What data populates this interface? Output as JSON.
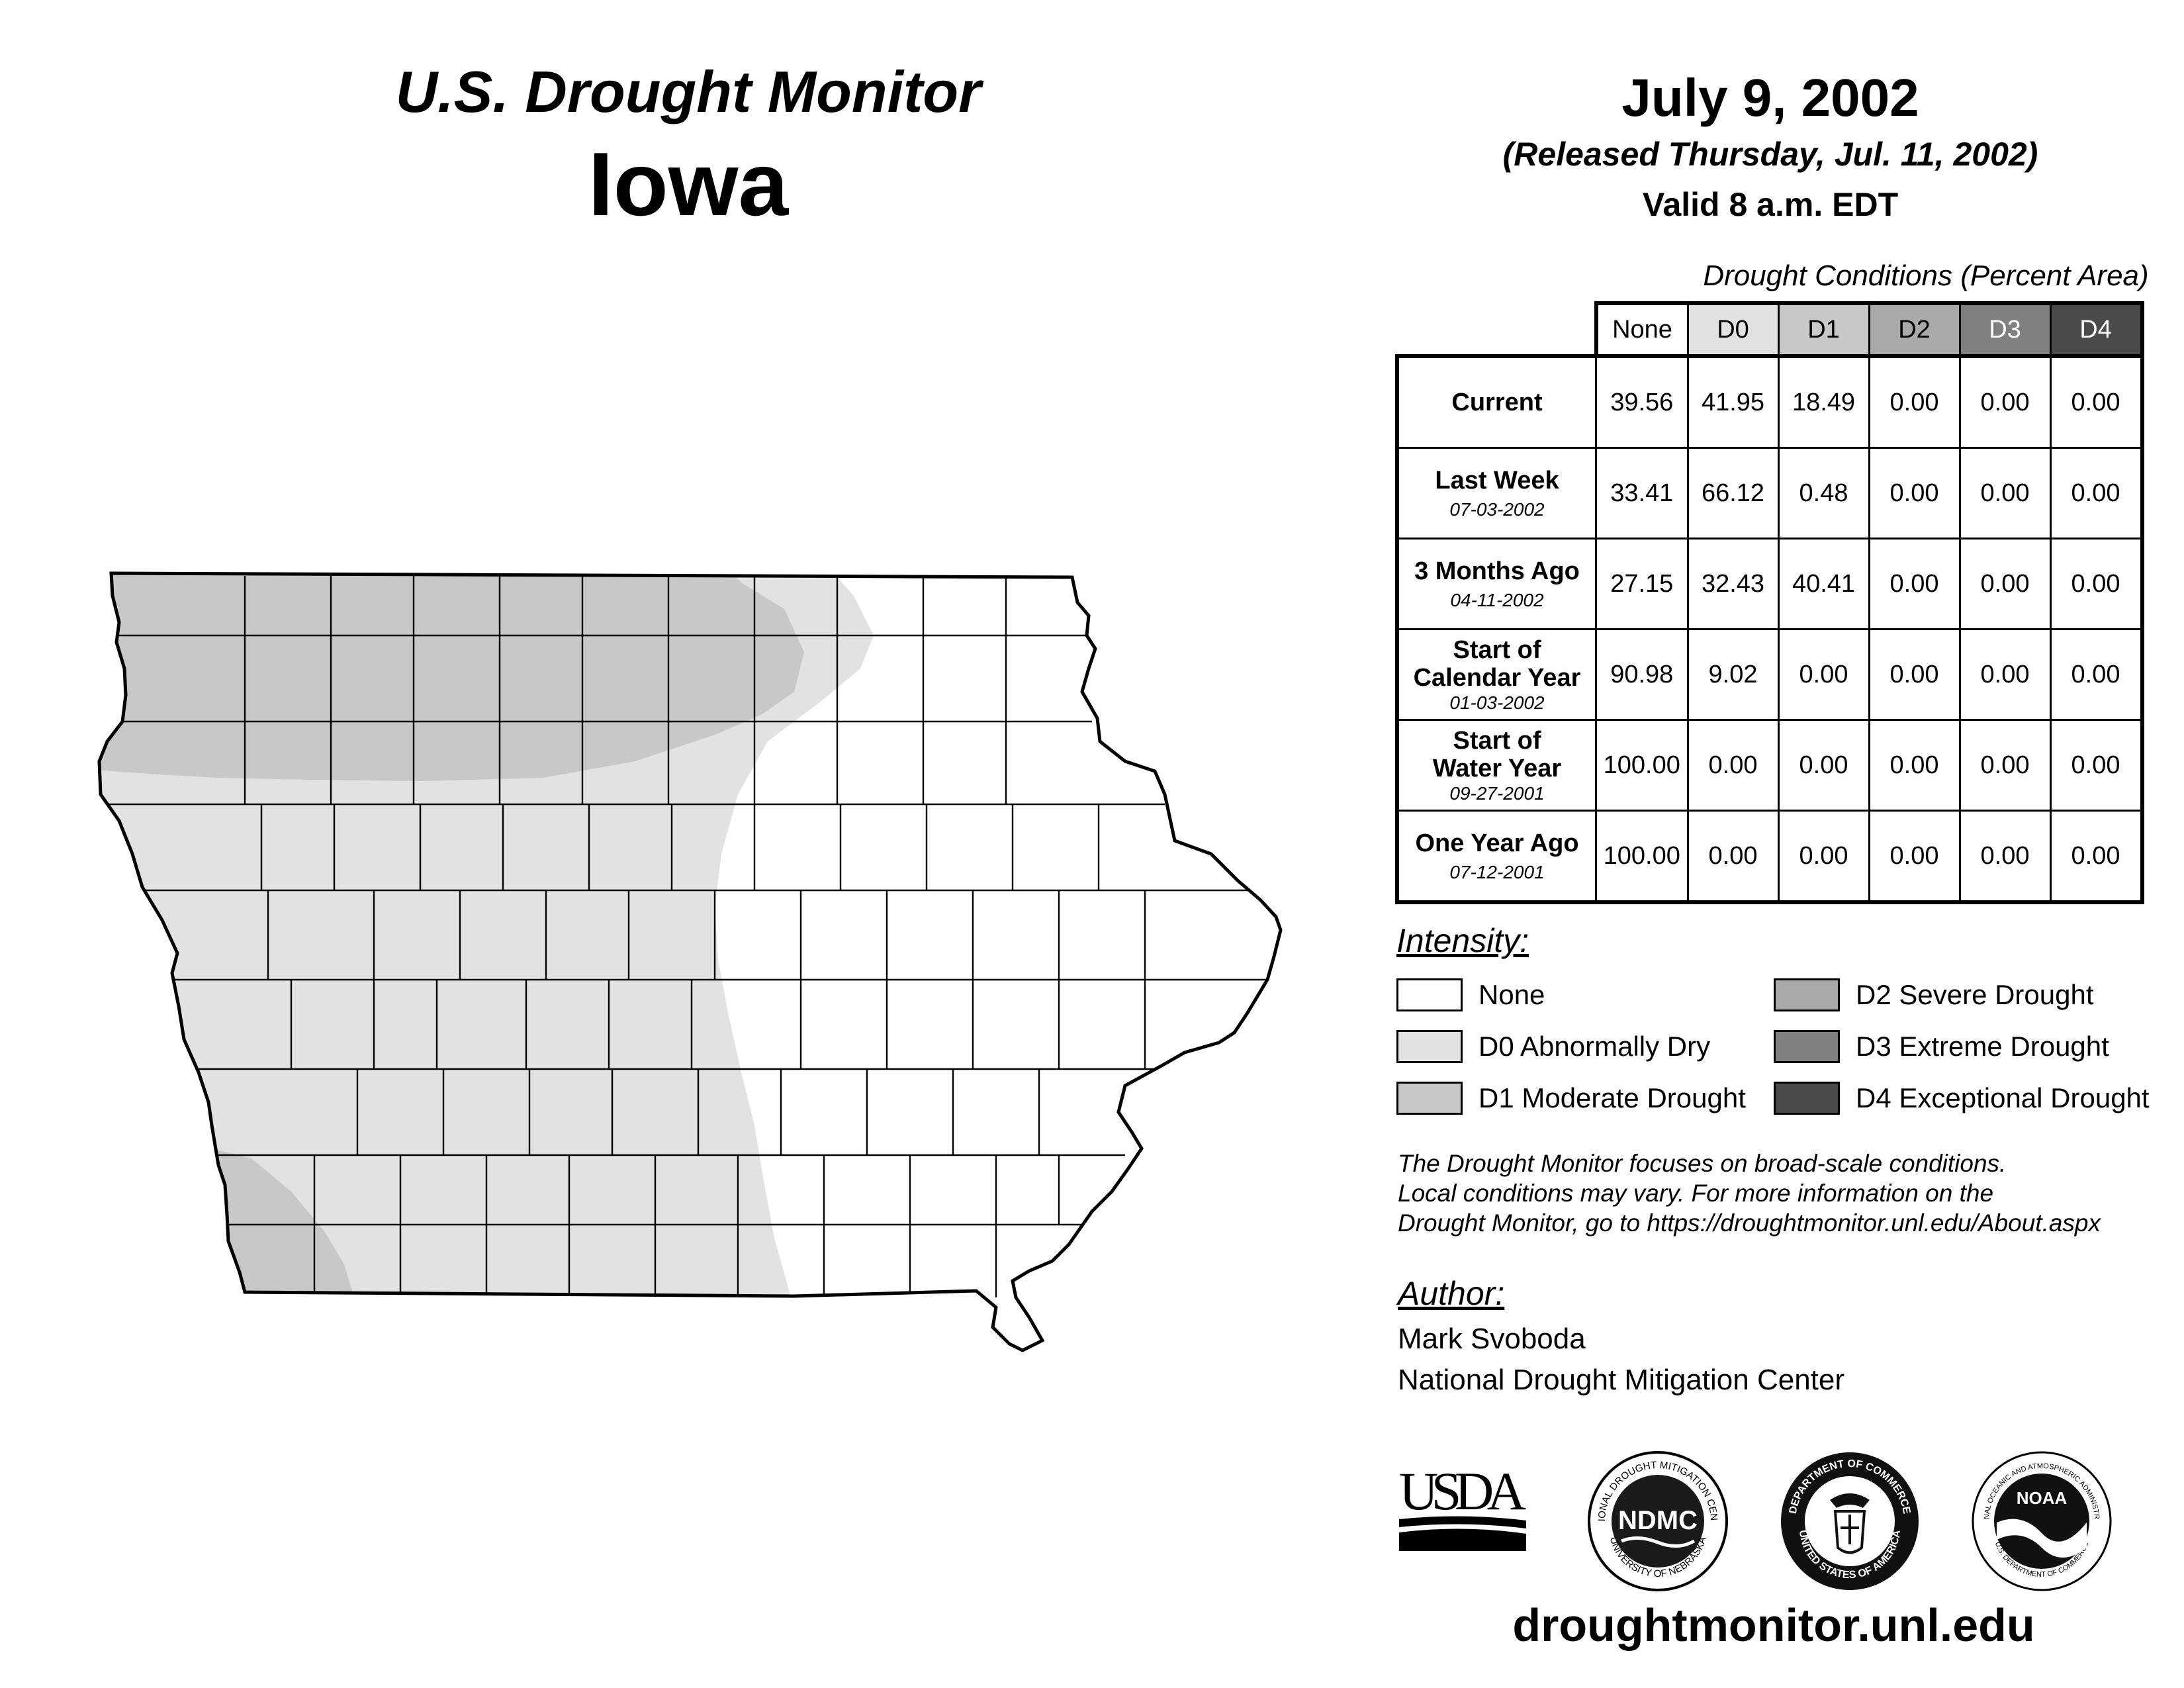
{
  "header": {
    "subtitle": "U.S. Drought Monitor",
    "state": "Iowa",
    "date": "July 9, 2002",
    "released": "(Released Thursday, Jul. 11, 2002)",
    "valid": "Valid 8 a.m. EDT"
  },
  "table": {
    "caption": "Drought Conditions (Percent Area)",
    "columns": [
      "None",
      "D0",
      "D1",
      "D2",
      "D3",
      "D4"
    ],
    "rows": [
      {
        "label": "Current",
        "date": "",
        "values": [
          "39.56",
          "41.95",
          "18.49",
          "0.00",
          "0.00",
          "0.00"
        ]
      },
      {
        "label": "Last Week",
        "date": "07-03-2002",
        "values": [
          "33.41",
          "66.12",
          "0.48",
          "0.00",
          "0.00",
          "0.00"
        ]
      },
      {
        "label": "3 Months Ago",
        "date": "04-11-2002",
        "values": [
          "27.15",
          "32.43",
          "40.41",
          "0.00",
          "0.00",
          "0.00"
        ]
      },
      {
        "label": "Start of Calendar Year",
        "date": "01-03-2002",
        "values": [
          "90.98",
          "9.02",
          "0.00",
          "0.00",
          "0.00",
          "0.00"
        ]
      },
      {
        "label": "Start of Water Year",
        "date": "09-27-2001",
        "values": [
          "100.00",
          "0.00",
          "0.00",
          "0.00",
          "0.00",
          "0.00"
        ]
      },
      {
        "label": "One Year Ago",
        "date": "07-12-2001",
        "values": [
          "100.00",
          "0.00",
          "0.00",
          "0.00",
          "0.00",
          "0.00"
        ]
      }
    ]
  },
  "legend": {
    "title": "Intensity:",
    "items": [
      {
        "label": "None",
        "color": "#ffffff"
      },
      {
        "label": "D0 Abnormally Dry",
        "color": "#e2e2e2"
      },
      {
        "label": "D1 Moderate Drought",
        "color": "#c8c8c8"
      },
      {
        "label": "D2 Severe Drought",
        "color": "#a9a9a9"
      },
      {
        "label": "D3 Extreme Drought",
        "color": "#808080"
      },
      {
        "label": "D4 Exceptional Drought",
        "color": "#4a4a4a"
      }
    ]
  },
  "note": {
    "lines": [
      "The Drought Monitor focuses on broad-scale conditions.",
      "Local conditions may vary. For more information on the",
      "Drought Monitor, go to https://droughtmonitor.unl.edu/About.aspx"
    ]
  },
  "author": {
    "label": "Author:",
    "name": "Mark Svoboda",
    "org": "National Drought Mitigation Center"
  },
  "logos": {
    "usda": "USDA",
    "ndmc": "NDMC",
    "ndmc_ring_top": "NATIONAL DROUGHT MITIGATION CENTER",
    "ndmc_ring_bottom": "UNIVERSITY OF NEBRASKA",
    "doc_ring": "DEPARTMENT OF COMMERCE",
    "doc_ring_bottom": "UNITED STATES OF AMERICA",
    "noaa": "NOAA",
    "noaa_ring": "NATIONAL OCEANIC AND ATMOSPHERIC ADMINISTRATION",
    "noaa_ring_bottom": "U.S. DEPARTMENT OF COMMERCE"
  },
  "website": "droughtmonitor.unl.edu",
  "map_colors": {
    "none": "#ffffff",
    "d0": "#e2e2e2",
    "d1": "#c8c8c8"
  }
}
